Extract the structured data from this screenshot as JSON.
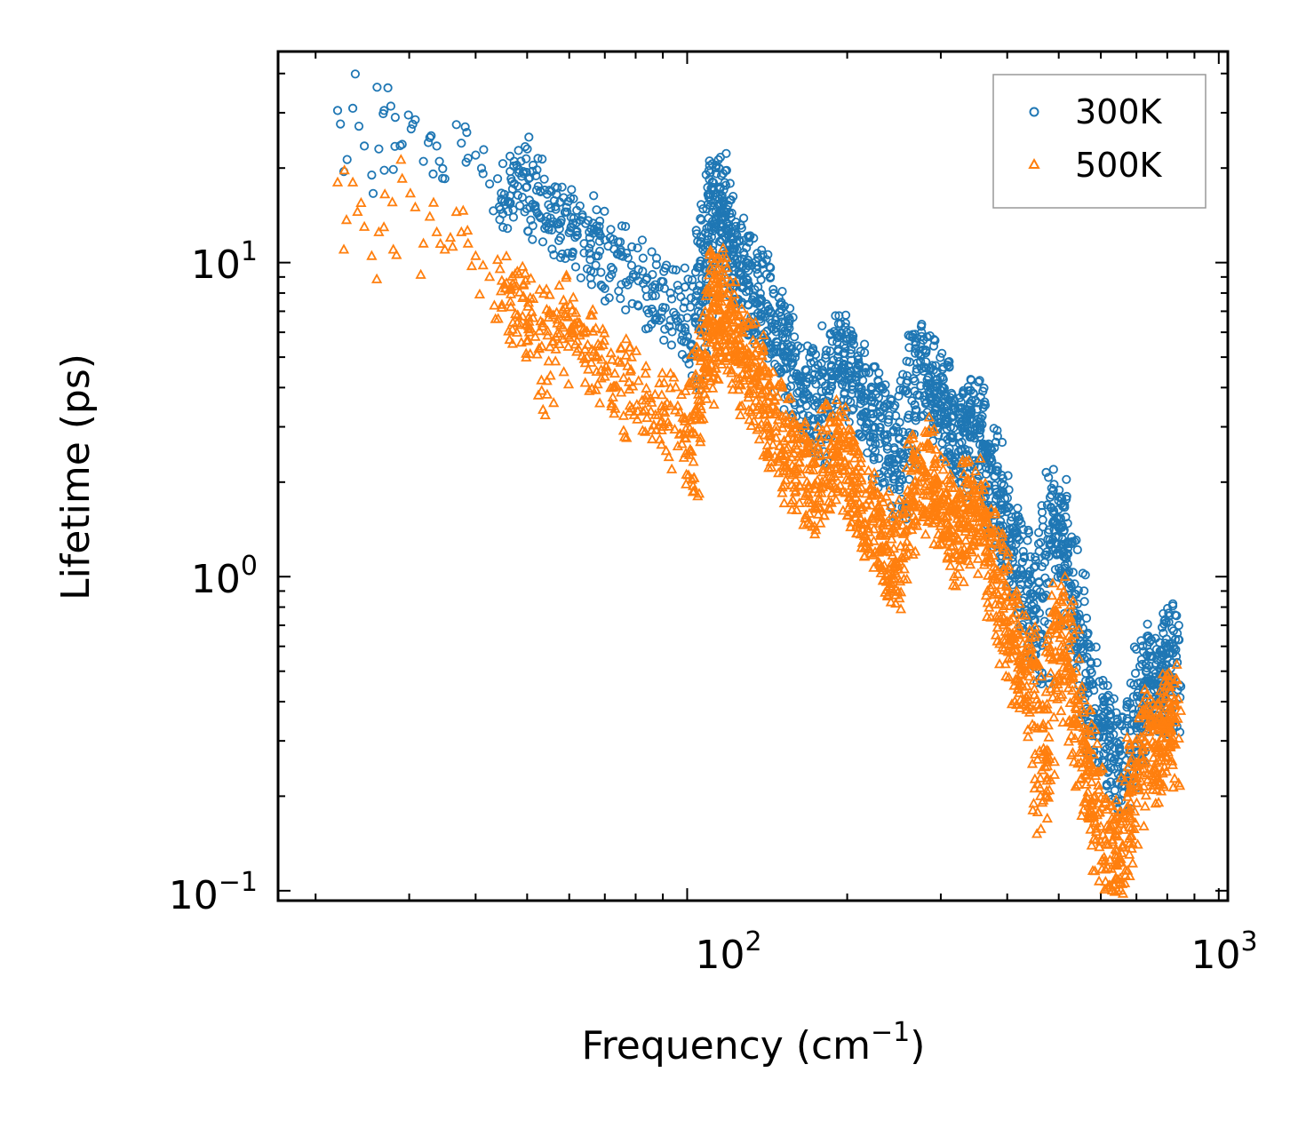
{
  "chart_data": {
    "type": "scatter",
    "title": "",
    "xlabel": "Frequency (cm",
    "xlabel_exponent": "−1",
    "xlabel_suffix": ")",
    "ylabel": "Lifetime (ps)",
    "xscale": "log",
    "yscale": "log",
    "xlim": [
      17,
      1040
    ],
    "ylim": [
      0.093,
      47
    ],
    "grid": false,
    "legend_position": "top-right",
    "x_ticks": [
      {
        "value": 100,
        "base": "10",
        "exponent": "2"
      },
      {
        "value": 1000,
        "base": "10",
        "exponent": "3"
      }
    ],
    "y_ticks": [
      {
        "value": 0.1,
        "base": "10",
        "exponent": "−1"
      },
      {
        "value": 1,
        "base": "10",
        "exponent": "0"
      },
      {
        "value": 10,
        "base": "10",
        "exponent": "1"
      }
    ],
    "series": [
      {
        "name": "300K",
        "marker": "circle",
        "color": "#1f77b4",
        "points": [
          [
            22.0,
            30.5
          ],
          [
            23.5,
            31.0
          ],
          [
            22.6,
            19.5
          ],
          [
            26.8,
            29.8
          ],
          [
            26.9,
            30.5
          ],
          [
            27.7,
            31.5
          ],
          [
            26.3,
            23.0
          ],
          [
            25.5,
            19.0
          ],
          [
            24.7,
            23.5
          ],
          [
            28.0,
            19.8
          ],
          [
            29.1,
            23.8
          ],
          [
            29.9,
            29.5
          ],
          [
            30.8,
            28.5
          ],
          [
            31.9,
            21.0
          ],
          [
            32.8,
            25.0
          ],
          [
            33.8,
            23.5
          ],
          [
            34.2,
            21.0
          ],
          [
            35.0,
            18.5
          ],
          [
            36.8,
            27.5
          ],
          [
            37.6,
            24.0
          ],
          [
            38.7,
            21.5
          ],
          [
            40.0,
            22.0
          ],
          [
            41.3,
            19.2
          ],
          [
            42.5,
            17.8
          ],
          [
            44.0,
            18.5
          ],
          [
            45.3,
            16.5
          ],
          [
            46.5,
            15.5
          ],
          [
            48.0,
            17.5
          ],
          [
            49.2,
            19.5
          ],
          [
            50.5,
            15.8
          ],
          [
            51.8,
            15.2
          ],
          [
            53.0,
            16.8
          ],
          [
            54.5,
            14.0
          ],
          [
            56.0,
            13.5
          ],
          [
            57.5,
            12.8
          ],
          [
            59.0,
            14.5
          ],
          [
            60.5,
            13.0
          ],
          [
            62.0,
            12.2
          ],
          [
            64.0,
            11.5
          ],
          [
            66.0,
            12.8
          ],
          [
            68.0,
            10.5
          ],
          [
            70.0,
            11.8
          ],
          [
            72.5,
            9.5
          ],
          [
            75.0,
            10.8
          ],
          [
            78.0,
            8.8
          ],
          [
            81.0,
            9.5
          ],
          [
            84.0,
            7.8
          ],
          [
            87.0,
            8.5
          ],
          [
            90.0,
            7.2
          ],
          [
            93.0,
            8.0
          ],
          [
            96.0,
            6.5
          ],
          [
            99.0,
            7.5
          ],
          [
            102.0,
            5.5
          ],
          [
            105.0,
            7.0
          ],
          [
            108.0,
            9.5
          ],
          [
            110.0,
            13.0
          ],
          [
            112.0,
            15.5
          ],
          [
            114.0,
            16.2
          ],
          [
            116.0,
            14.5
          ],
          [
            118.0,
            12.8
          ],
          [
            120.0,
            11.5
          ],
          [
            123.0,
            10.2
          ],
          [
            126.0,
            9.8
          ],
          [
            130.0,
            8.8
          ],
          [
            134.0,
            8.2
          ],
          [
            138.0,
            7.6
          ],
          [
            142.0,
            7.0
          ],
          [
            147.0,
            6.2
          ],
          [
            152.0,
            5.4
          ],
          [
            157.0,
            4.8
          ],
          [
            162.0,
            4.2
          ],
          [
            168.0,
            3.8
          ],
          [
            174.0,
            3.5
          ],
          [
            180.0,
            3.2
          ],
          [
            186.0,
            4.5
          ],
          [
            192.0,
            5.0
          ],
          [
            198.0,
            4.6
          ],
          [
            204.0,
            4.3
          ],
          [
            210.0,
            4.0
          ],
          [
            217.0,
            3.7
          ],
          [
            224.0,
            3.3
          ],
          [
            231.0,
            2.9
          ],
          [
            238.0,
            2.6
          ],
          [
            245.0,
            2.3
          ],
          [
            252.0,
            2.1
          ],
          [
            260.0,
            3.2
          ],
          [
            268.0,
            4.2
          ],
          [
            276.0,
            4.6
          ],
          [
            284.0,
            4.3
          ],
          [
            292.0,
            3.9
          ],
          [
            300.0,
            3.5
          ],
          [
            308.0,
            3.1
          ],
          [
            316.0,
            2.8
          ],
          [
            324.0,
            2.5
          ],
          [
            333.0,
            2.9
          ],
          [
            342.0,
            3.3
          ],
          [
            351.0,
            3.0
          ],
          [
            360.0,
            2.6
          ],
          [
            370.0,
            2.2
          ],
          [
            380.0,
            1.9
          ],
          [
            390.0,
            1.6
          ],
          [
            400.0,
            1.35
          ],
          [
            412.0,
            1.2
          ],
          [
            424.0,
            1.05
          ],
          [
            436.0,
            0.9
          ],
          [
            450.0,
            0.78
          ],
          [
            462.0,
            0.62
          ],
          [
            475.0,
            1.2
          ],
          [
            488.0,
            1.6
          ],
          [
            500.0,
            1.45
          ],
          [
            512.0,
            1.2
          ],
          [
            525.0,
            0.95
          ],
          [
            540.0,
            0.75
          ],
          [
            555.0,
            0.58
          ],
          [
            570.0,
            0.45
          ],
          [
            585.0,
            0.38
          ],
          [
            600.0,
            0.33
          ],
          [
            620.0,
            0.3
          ],
          [
            640.0,
            0.27
          ],
          [
            660.0,
            0.25
          ],
          [
            680.0,
            0.28
          ],
          [
            700.0,
            0.35
          ],
          [
            720.0,
            0.45
          ],
          [
            740.0,
            0.52
          ],
          [
            760.0,
            0.48
          ],
          [
            780.0,
            0.42
          ],
          [
            800.0,
            0.55
          ],
          [
            810.0,
            0.6
          ],
          [
            815.0,
            0.45
          ]
        ]
      },
      {
        "name": "500K",
        "marker": "triangle",
        "color": "#ff7f0e",
        "points": [
          [
            22.0,
            18.0
          ],
          [
            23.5,
            18.0
          ],
          [
            22.6,
            11.0
          ],
          [
            24.7,
            13.0
          ],
          [
            25.5,
            10.5
          ],
          [
            26.3,
            12.5
          ],
          [
            27.0,
            16.5
          ],
          [
            28.0,
            11.0
          ],
          [
            29.1,
            18.5
          ],
          [
            30.8,
            15.0
          ],
          [
            31.9,
            11.5
          ],
          [
            32.8,
            14.0
          ],
          [
            33.8,
            12.5
          ],
          [
            35.0,
            11.0
          ],
          [
            36.8,
            14.5
          ],
          [
            37.6,
            12.5
          ],
          [
            38.7,
            11.5
          ],
          [
            40.0,
            10.5
          ],
          [
            41.3,
            9.8
          ],
          [
            42.5,
            9.0
          ],
          [
            44.0,
            10.2
          ],
          [
            45.3,
            8.5
          ],
          [
            46.5,
            7.5
          ],
          [
            48.0,
            6.8
          ],
          [
            49.2,
            7.8
          ],
          [
            50.5,
            6.0
          ],
          [
            51.8,
            5.8
          ],
          [
            53.0,
            6.5
          ],
          [
            54.5,
            4.2
          ],
          [
            56.0,
            6.8
          ],
          [
            57.5,
            5.5
          ],
          [
            59.0,
            7.2
          ],
          [
            60.5,
            6.2
          ],
          [
            62.0,
            5.2
          ],
          [
            64.0,
            6.0
          ],
          [
            66.0,
            4.8
          ],
          [
            68.0,
            5.5
          ],
          [
            70.0,
            4.5
          ],
          [
            72.5,
            4.0
          ],
          [
            75.0,
            4.8
          ],
          [
            78.0,
            3.5
          ],
          [
            81.0,
            4.2
          ],
          [
            84.0,
            3.2
          ],
          [
            87.0,
            3.8
          ],
          [
            90.0,
            3.0
          ],
          [
            93.0,
            3.5
          ],
          [
            96.0,
            2.6
          ],
          [
            99.0,
            3.2
          ],
          [
            102.0,
            2.5
          ],
          [
            105.0,
            3.8
          ],
          [
            108.0,
            4.6
          ],
          [
            110.0,
            5.8
          ],
          [
            112.0,
            7.2
          ],
          [
            114.0,
            8.0
          ],
          [
            116.0,
            7.5
          ],
          [
            118.0,
            6.8
          ],
          [
            120.0,
            6.2
          ],
          [
            123.0,
            5.5
          ],
          [
            126.0,
            5.0
          ],
          [
            130.0,
            4.6
          ],
          [
            134.0,
            4.2
          ],
          [
            138.0,
            3.8
          ],
          [
            142.0,
            3.4
          ],
          [
            147.0,
            3.0
          ],
          [
            152.0,
            2.7
          ],
          [
            157.0,
            2.4
          ],
          [
            162.0,
            2.2
          ],
          [
            168.0,
            2.0
          ],
          [
            174.0,
            1.9
          ],
          [
            180.0,
            2.2
          ],
          [
            186.0,
            2.6
          ],
          [
            192.0,
            2.5
          ],
          [
            198.0,
            2.3
          ],
          [
            204.0,
            2.1
          ],
          [
            210.0,
            1.9
          ],
          [
            217.0,
            1.7
          ],
          [
            224.0,
            1.5
          ],
          [
            231.0,
            1.35
          ],
          [
            238.0,
            1.2
          ],
          [
            245.0,
            1.1
          ],
          [
            252.0,
            1.25
          ],
          [
            260.0,
            1.6
          ],
          [
            268.0,
            2.0
          ],
          [
            276.0,
            2.3
          ],
          [
            284.0,
            2.1
          ],
          [
            292.0,
            1.9
          ],
          [
            300.0,
            1.7
          ],
          [
            308.0,
            1.55
          ],
          [
            316.0,
            1.4
          ],
          [
            324.0,
            1.3
          ],
          [
            333.0,
            1.5
          ],
          [
            342.0,
            1.7
          ],
          [
            351.0,
            1.55
          ],
          [
            360.0,
            1.35
          ],
          [
            370.0,
            1.15
          ],
          [
            380.0,
            1.0
          ],
          [
            390.0,
            0.85
          ],
          [
            400.0,
            0.72
          ],
          [
            412.0,
            0.62
          ],
          [
            424.0,
            0.55
          ],
          [
            436.0,
            0.5
          ],
          [
            450.0,
            0.42
          ],
          [
            462.0,
            0.2
          ],
          [
            475.0,
            0.28
          ],
          [
            488.0,
            0.55
          ],
          [
            500.0,
            0.72
          ],
          [
            512.0,
            0.6
          ],
          [
            525.0,
            0.48
          ],
          [
            540.0,
            0.38
          ],
          [
            555.0,
            0.3
          ],
          [
            570.0,
            0.24
          ],
          [
            585.0,
            0.2
          ],
          [
            600.0,
            0.16
          ],
          [
            620.0,
            0.14
          ],
          [
            640.0,
            0.13
          ],
          [
            660.0,
            0.14
          ],
          [
            680.0,
            0.17
          ],
          [
            700.0,
            0.22
          ],
          [
            720.0,
            0.28
          ],
          [
            740.0,
            0.32
          ],
          [
            760.0,
            0.29
          ],
          [
            780.0,
            0.26
          ],
          [
            800.0,
            0.35
          ],
          [
            810.0,
            0.38
          ],
          [
            815.0,
            0.3
          ]
        ]
      }
    ]
  }
}
